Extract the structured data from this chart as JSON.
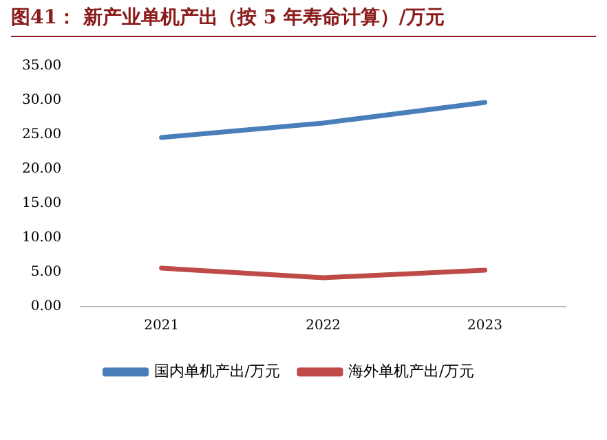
{
  "chart_data": {
    "type": "line",
    "title": "图41：  新产业单机产出（按 5 年寿命计算）/万元",
    "categories": [
      "2021",
      "2022",
      "2023"
    ],
    "series": [
      {
        "name": "国内单机产出/万元",
        "color": "#4a7ebb",
        "values": [
          24.6,
          26.7,
          29.7
        ]
      },
      {
        "name": "海外单机产出/万元",
        "color": "#be4b48",
        "values": [
          5.6,
          4.2,
          5.3
        ]
      }
    ],
    "ylim": [
      0,
      35
    ],
    "yticks": [
      {
        "value": 0,
        "label": "0.00"
      },
      {
        "value": 5,
        "label": "5.00"
      },
      {
        "value": 10,
        "label": "10.00"
      },
      {
        "value": 15,
        "label": "15.00"
      },
      {
        "value": 20,
        "label": "20.00"
      },
      {
        "value": 25,
        "label": "25.00"
      },
      {
        "value": 30,
        "label": "30.00"
      },
      {
        "value": 35,
        "label": "35.00"
      }
    ],
    "grid": false,
    "legend": "bottom",
    "marker": "none",
    "line_style": "solid"
  }
}
